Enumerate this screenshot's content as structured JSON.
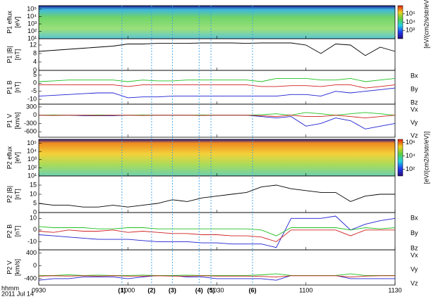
{
  "chart_data": [
    {
      "type": "spectrogram",
      "ylabel": [
        "P1 eflux",
        "[eV]"
      ],
      "log_y": true,
      "ylim": [
        10,
        300000
      ],
      "yticks": [
        {
          "value": 10,
          "label": "10¹"
        },
        {
          "value": 100,
          "label": "10²"
        },
        {
          "value": 1000,
          "label": "10³"
        },
        {
          "value": 10000,
          "label": "10⁴"
        },
        {
          "value": 100000,
          "label": "10⁵"
        }
      ],
      "colorbar_label": "[eV/(cm2/s/str/eV)]",
      "colorbar_lim": [
        100,
        1000000
      ],
      "colorbar_ticks": [
        {
          "value": 1000,
          "label": "10³"
        },
        {
          "value": 10000,
          "label": "10⁴"
        },
        {
          "value": 100000,
          "label": "10⁵"
        }
      ]
    },
    {
      "type": "line",
      "ylabel": [
        "P1 |B|",
        "[nT]"
      ],
      "xlim": [
        570,
        690
      ],
      "ylim": [
        0,
        15
      ],
      "yticks": [
        0,
        4,
        8,
        12
      ],
      "x": [
        570,
        575,
        580,
        585,
        590,
        595,
        600,
        605,
        610,
        615,
        620,
        625,
        630,
        635,
        640,
        645,
        650,
        655,
        660,
        665,
        670,
        675,
        680,
        685,
        690
      ],
      "series": [
        {
          "name": null,
          "color": "#000000",
          "values": [
            9,
            9.5,
            10,
            10.5,
            11,
            11.5,
            12.5,
            12.5,
            12.8,
            12.8,
            12.8,
            13,
            13,
            13,
            12.8,
            13,
            13,
            13,
            12,
            8,
            12.5,
            12,
            7,
            11,
            9
          ]
        }
      ]
    },
    {
      "type": "line",
      "ylabel": [
        "P1 B",
        "[nT]"
      ],
      "xlim": [
        570,
        690
      ],
      "ylim": [
        -13,
        8
      ],
      "yticks": [
        -10,
        -5,
        0,
        5
      ],
      "x": [
        570,
        575,
        580,
        585,
        590,
        595,
        600,
        605,
        610,
        615,
        620,
        625,
        630,
        635,
        640,
        645,
        650,
        655,
        660,
        665,
        670,
        675,
        680,
        685,
        690
      ],
      "series": [
        {
          "name": "Bx",
          "color": "#1f1fd0",
          "values": [
            -8,
            -7.5,
            -7,
            -6.5,
            -6,
            -6,
            -9,
            -8.5,
            -8.5,
            -8,
            -8,
            -8,
            -8,
            -8,
            -8,
            -8,
            -8,
            -7,
            -7,
            -8,
            -5,
            -6,
            -5,
            -4,
            -3
          ]
        },
        {
          "name": "By",
          "color": "#20c020",
          "values": [
            1,
            1.5,
            2,
            2,
            2,
            2,
            1,
            2,
            1.5,
            1.5,
            2,
            2,
            2,
            2,
            2,
            1,
            3,
            3,
            3,
            2,
            2,
            3,
            1,
            2,
            3
          ]
        },
        {
          "name": "Bz",
          "color": "#d02020",
          "values": [
            -1,
            -1,
            -1,
            -1,
            -1,
            -1,
            -2,
            -1,
            -1,
            -1,
            -1,
            -1,
            -1,
            -1,
            -1,
            -2,
            -2,
            -1.5,
            -1.5,
            -2,
            -1,
            -1,
            -3,
            -2,
            -1
          ]
        }
      ]
    },
    {
      "type": "line",
      "ylabel": [
        "P1 V",
        "[km/s]"
      ],
      "xlim": [
        570,
        690
      ],
      "ylim": [
        -800,
        400
      ],
      "yticks": [
        -600,
        -300,
        0,
        300
      ],
      "x": [
        570,
        575,
        580,
        585,
        590,
        595,
        600,
        605,
        610,
        615,
        620,
        625,
        630,
        635,
        640,
        645,
        650,
        655,
        660,
        665,
        670,
        675,
        680,
        685,
        690
      ],
      "series": [
        {
          "name": "Vx",
          "color": "#1f1fd0",
          "values": [
            0,
            0,
            0,
            -20,
            -20,
            -20,
            0,
            0,
            0,
            0,
            0,
            0,
            0,
            0,
            0,
            -50,
            -100,
            -50,
            -400,
            -300,
            -100,
            -200,
            -500,
            -400,
            -300
          ]
        },
        {
          "name": "Vy",
          "color": "#20c020",
          "values": [
            0,
            10,
            0,
            0,
            10,
            0,
            0,
            10,
            0,
            0,
            0,
            10,
            0,
            0,
            0,
            20,
            50,
            0,
            100,
            50,
            0,
            50,
            100,
            50,
            0
          ]
        },
        {
          "name": "Vz",
          "color": "#d02020",
          "values": [
            0,
            -10,
            0,
            0,
            -10,
            0,
            0,
            -10,
            0,
            0,
            0,
            -10,
            0,
            0,
            0,
            -20,
            -50,
            0,
            -50,
            -50,
            0,
            -50,
            -100,
            -50,
            0
          ]
        }
      ]
    },
    {
      "type": "spectrogram",
      "ylabel": [
        "P2 eflux",
        "[eV]"
      ],
      "log_y": true,
      "ylim": [
        10,
        300000
      ],
      "yticks": [
        {
          "value": 10,
          "label": "10¹"
        },
        {
          "value": 100,
          "label": "10²"
        },
        {
          "value": 1000,
          "label": "10³"
        },
        {
          "value": 10000,
          "label": "10⁴"
        },
        {
          "value": 100000,
          "label": "10⁵"
        }
      ],
      "colorbar_label": "[eV/(cm2/s/str/eV)]",
      "colorbar_lim": [
        10,
        3000000
      ],
      "colorbar_ticks": [
        {
          "value": 100,
          "label": "10²"
        },
        {
          "value": 10000,
          "label": "10⁴"
        },
        {
          "value": 1000000,
          "label": "10⁶"
        }
      ]
    },
    {
      "type": "line",
      "ylabel": [
        "P2 |B|",
        "[nT]"
      ],
      "xlim": [
        570,
        690
      ],
      "ylim": [
        0,
        20
      ],
      "yticks": [
        0,
        5,
        10,
        15
      ],
      "x": [
        570,
        575,
        580,
        585,
        590,
        595,
        600,
        605,
        610,
        615,
        620,
        625,
        630,
        635,
        640,
        645,
        650,
        655,
        660,
        665,
        670,
        675,
        680,
        685,
        690
      ],
      "series": [
        {
          "name": null,
          "color": "#000000",
          "values": [
            5,
            4,
            4,
            3,
            3,
            4,
            3,
            4,
            5,
            7,
            6,
            8,
            9,
            10,
            11,
            14,
            15,
            13,
            12,
            11,
            11,
            6,
            9,
            10,
            10
          ]
        }
      ]
    },
    {
      "type": "line",
      "ylabel": [
        "P2 B",
        "[nT]"
      ],
      "xlim": [
        570,
        690
      ],
      "ylim": [
        -17,
        15
      ],
      "yticks": [
        -10,
        0,
        10
      ],
      "x": [
        570,
        575,
        580,
        585,
        590,
        595,
        600,
        605,
        610,
        615,
        620,
        625,
        630,
        635,
        640,
        645,
        650,
        655,
        660,
        665,
        670,
        675,
        680,
        685,
        690
      ],
      "series": [
        {
          "name": "Bx",
          "color": "#1f1fd0",
          "values": [
            -4,
            -5,
            -6,
            -7,
            -8,
            -8,
            -8,
            -9,
            -10,
            -10,
            -10,
            -11,
            -11,
            -12,
            -12,
            -12,
            -15,
            10,
            10,
            10,
            12,
            0,
            5,
            8,
            10
          ]
        },
        {
          "name": "By",
          "color": "#20c020",
          "values": [
            3,
            2,
            2,
            2,
            1,
            1,
            2,
            2,
            1,
            1,
            1,
            1,
            1,
            1,
            1,
            0,
            -5,
            2,
            2,
            2,
            2,
            0,
            2,
            1,
            2
          ]
        },
        {
          "name": "Bz",
          "color": "#d02020",
          "values": [
            -1,
            -2,
            0,
            -1,
            -1,
            0,
            -2,
            -1,
            -2,
            -3,
            -3,
            -4,
            -4,
            -5,
            -5,
            -6,
            -10,
            0,
            0,
            0,
            0,
            -5,
            0,
            0,
            0
          ]
        }
      ]
    },
    {
      "type": "line",
      "ylabel": [
        "P2 V",
        "[km/s]"
      ],
      "xlim": [
        570,
        690
      ],
      "ylim": [
        -600,
        500
      ],
      "yticks": [
        -400,
        0,
        400
      ],
      "x": [
        570,
        575,
        580,
        585,
        590,
        595,
        600,
        605,
        610,
        615,
        620,
        625,
        630,
        635,
        640,
        645,
        650,
        655,
        660,
        665,
        670,
        675,
        680,
        685,
        690
      ],
      "series": [
        {
          "name": "Vx",
          "color": "#1f1fd0",
          "values": [
            -450,
            -400,
            -400,
            -350,
            -350,
            -350,
            -400,
            -350,
            -300,
            -300,
            -350,
            -350,
            -400,
            -400,
            -400,
            -400,
            -450,
            -300,
            -300,
            -300,
            -300,
            -400,
            -400,
            -400,
            -400
          ]
        },
        {
          "name": "Vy",
          "color": "#20c020",
          "values": [
            -300,
            -300,
            -280,
            -300,
            -290,
            -300,
            -300,
            -290,
            -300,
            -300,
            -290,
            -300,
            -300,
            -300,
            -300,
            -280,
            -250,
            -300,
            -300,
            -300,
            -300,
            -250,
            -300,
            -300,
            -300
          ]
        },
        {
          "name": "Vz",
          "color": "#d02020",
          "values": [
            -320,
            -310,
            -320,
            -310,
            -320,
            -310,
            -320,
            -320,
            -310,
            -320,
            -320,
            -310,
            -320,
            -320,
            -320,
            -330,
            -350,
            -310,
            -310,
            -310,
            -310,
            -350,
            -320,
            -310,
            -310
          ]
        }
      ],
      "xticks": [
        {
          "value": 570,
          "label": "0930"
        },
        {
          "value": 600,
          "label": "1000"
        },
        {
          "value": 630,
          "label": "1030"
        },
        {
          "value": 660,
          "label": "1100"
        },
        {
          "value": 690,
          "label": "1130"
        }
      ],
      "xlabel": "hhmm",
      "date": "2011 Jul 14",
      "annotations": [
        {
          "text": "(1)",
          "x": 598
        },
        {
          "text": "(2)",
          "x": 608
        },
        {
          "text": "(3)",
          "x": 615
        },
        {
          "text": "(4)",
          "x": 624
        },
        {
          "text": "(5)",
          "x": 628
        },
        {
          "text": "(6)",
          "x": 642
        }
      ]
    }
  ]
}
